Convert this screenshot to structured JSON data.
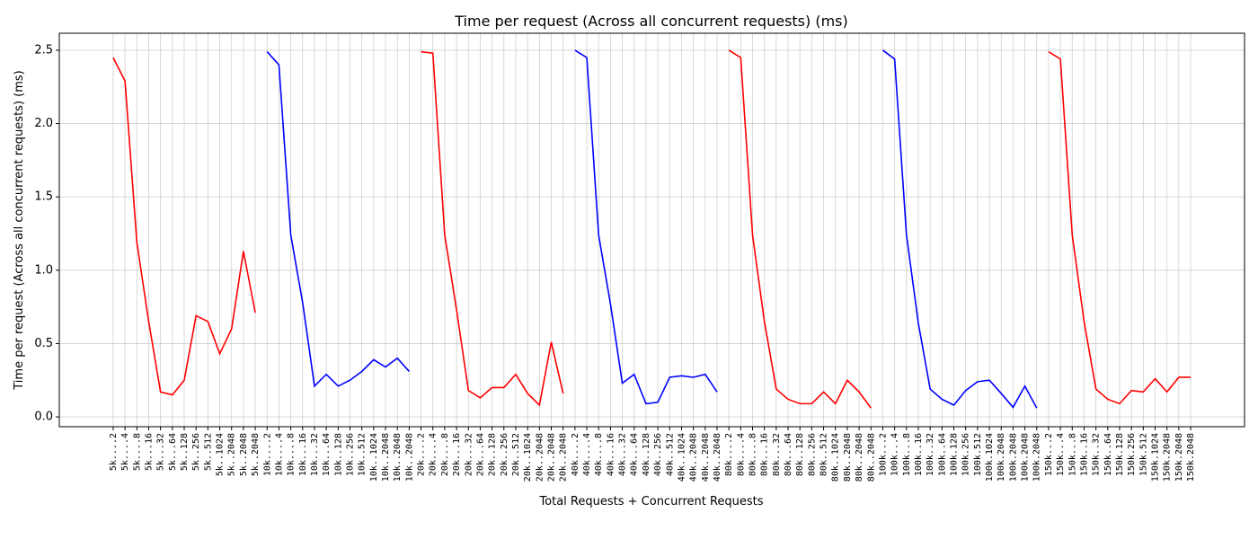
{
  "chart_data": {
    "type": "line",
    "title": "Time per request (Across all concurrent requests) (ms)",
    "xlabel": "Total Requests + Concurrent Requests",
    "ylabel": "Time per request (Across all concurrent requests) (ms)",
    "ylim": [
      -0.067,
      2.616
    ],
    "yticks": [
      {
        "value": 0,
        "label": "0.0"
      },
      0.5,
      {
        "value": 1,
        "label": "1.0"
      },
      1.5,
      {
        "value": 2,
        "label": "2.0"
      },
      2.5
    ],
    "grid": true,
    "series": [
      {
        "color": "#ff0000",
        "categories": [
          "5k....2",
          "5k....4",
          "5k....8",
          "5k...16",
          "5k...32",
          "5k...64",
          "5k..128",
          "5k..256",
          "5k..512",
          "5k..1024",
          "5k..2048",
          "5k..2048",
          "5k..2048"
        ],
        "values": [
          2.45,
          2.29,
          1.19,
          0.65,
          0.17,
          0.15,
          0.25,
          0.69,
          0.65,
          0.43,
          0.6,
          1.13,
          0.71
        ]
      },
      {
        "color": "#0000ff",
        "categories": [
          "10k....2",
          "10k....4",
          "10k....8",
          "10k...16",
          "10k...32",
          "10k...64",
          "10k..128",
          "10k..256",
          "10k..512",
          "10k..1024",
          "10k..2048",
          "10k..2048",
          "10k..2048"
        ],
        "values": [
          2.49,
          2.4,
          1.24,
          0.78,
          0.21,
          0.29,
          0.21,
          0.25,
          0.31,
          0.39,
          0.34,
          0.4,
          0.31
        ]
      },
      {
        "color": "#ff0000",
        "categories": [
          "20k....2",
          "20k....4",
          "20k....8",
          "20k...16",
          "20k...32",
          "20k...64",
          "20k..128",
          "20k..256",
          "20k..512",
          "20k..1024",
          "20k..2048",
          "20k..2048",
          "20k..2048"
        ],
        "values": [
          2.49,
          2.48,
          1.24,
          0.73,
          0.18,
          0.13,
          0.2,
          0.2,
          0.29,
          0.16,
          0.08,
          0.51,
          0.16
        ]
      },
      {
        "color": "#0000ff",
        "categories": [
          "40k....2",
          "40k....4",
          "40k....8",
          "40k...16",
          "40k...32",
          "40k...64",
          "40k..128",
          "40k..256",
          "40k..512",
          "40k..1024",
          "40k..2048",
          "40k..2048",
          "40k..2048"
        ],
        "values": [
          2.5,
          2.45,
          1.24,
          0.77,
          0.23,
          0.29,
          0.09,
          0.1,
          0.27,
          0.28,
          0.27,
          0.29,
          0.17
        ]
      },
      {
        "color": "#ff0000",
        "categories": [
          "80k....2",
          "80k....4",
          "80k....8",
          "80k...16",
          "80k...32",
          "80k...64",
          "80k..128",
          "80k..256",
          "80k..512",
          "80k..1024",
          "80k..2048",
          "80k..2048",
          "80k..2048"
        ],
        "values": [
          2.5,
          2.45,
          1.24,
          0.65,
          0.19,
          0.12,
          0.09,
          0.09,
          0.17,
          0.09,
          0.25,
          0.17,
          0.06
        ]
      },
      {
        "color": "#0000ff",
        "categories": [
          "100k...2",
          "100k...4",
          "100k...8",
          "100k..16",
          "100k..32",
          "100k..64",
          "100k.128",
          "100k.256",
          "100k.512",
          "100k.1024",
          "100k.2048",
          "100k.2048",
          "100k.2048",
          "100k.2048"
        ],
        "values": [
          2.5,
          2.44,
          1.24,
          0.64,
          0.19,
          0.12,
          0.08,
          0.18,
          0.24,
          0.25,
          0.16,
          0.065,
          0.21,
          0.06
        ]
      },
      {
        "color": "#ff0000",
        "categories": [
          "150k...2",
          "150k...4",
          "150k...8",
          "150k..16",
          "150k..32",
          "150k..64",
          "150k.128",
          "150k.256",
          "150k.512",
          "150k.1024",
          "150k.2048",
          "150k.2048",
          "150k.2048"
        ],
        "values": [
          2.49,
          2.44,
          1.24,
          0.65,
          0.19,
          0.12,
          0.09,
          0.18,
          0.17,
          0.26,
          0.17,
          0.27,
          0.27
        ]
      }
    ]
  }
}
